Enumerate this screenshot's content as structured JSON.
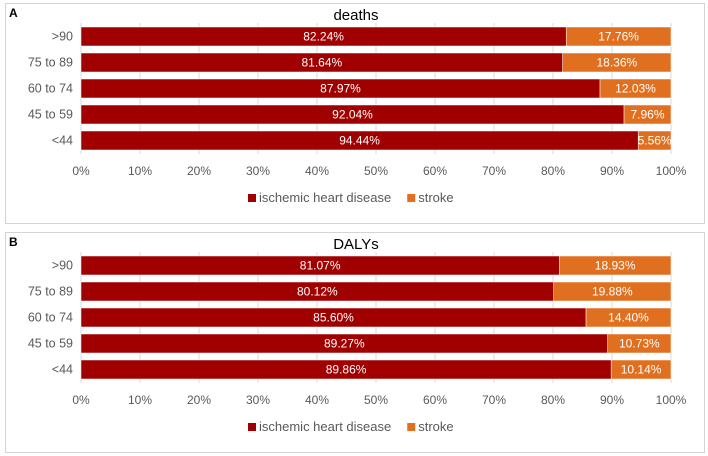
{
  "colors": {
    "ischemic": "#A00000",
    "stroke": "#E07020",
    "grid": "#d9d9d9",
    "axis_text": "#595959"
  },
  "chart_data": [
    {
      "panel_label": "A",
      "type": "bar",
      "orientation": "horizontal",
      "stacked": true,
      "title": "deaths",
      "categories": [
        ">90",
        "75 to 89",
        "60 to 74",
        "45 to 59",
        "<44"
      ],
      "series": [
        {
          "name": "ischemic heart disease",
          "values": [
            82.24,
            81.64,
            87.97,
            92.04,
            94.44
          ],
          "labels": [
            "82.24%",
            "81.64%",
            "87.97%",
            "92.04%",
            "94.44%"
          ]
        },
        {
          "name": "stroke",
          "values": [
            17.76,
            18.36,
            12.03,
            7.96,
            5.56
          ],
          "labels": [
            "17.76%",
            "18.36%",
            "12.03%",
            "7.96%",
            "5.56%"
          ]
        }
      ],
      "xlim": [
        0,
        100
      ],
      "xticks": [
        "0%",
        "10%",
        "20%",
        "30%",
        "40%",
        "50%",
        "60%",
        "70%",
        "80%",
        "90%",
        "100%"
      ],
      "grid": true,
      "legend": "bottom-center"
    },
    {
      "panel_label": "B",
      "type": "bar",
      "orientation": "horizontal",
      "stacked": true,
      "title": "DALYs",
      "categories": [
        ">90",
        "75 to 89",
        "60 to 74",
        "45 to 59",
        "<44"
      ],
      "series": [
        {
          "name": "ischemic heart disease",
          "values": [
            81.07,
            80.12,
            85.6,
            89.27,
            89.86
          ],
          "labels": [
            "81.07%",
            "80.12%",
            "85.60%",
            "89.27%",
            "89.86%"
          ]
        },
        {
          "name": "stroke",
          "values": [
            18.93,
            19.88,
            14.4,
            10.73,
            10.14
          ],
          "labels": [
            "18.93%",
            "19.88%",
            "14.40%",
            "10.73%",
            "10.14%"
          ]
        }
      ],
      "xlim": [
        0,
        100
      ],
      "xticks": [
        "0%",
        "10%",
        "20%",
        "30%",
        "40%",
        "50%",
        "60%",
        "70%",
        "80%",
        "90%",
        "100%"
      ],
      "grid": true,
      "legend": "bottom-center"
    }
  ]
}
